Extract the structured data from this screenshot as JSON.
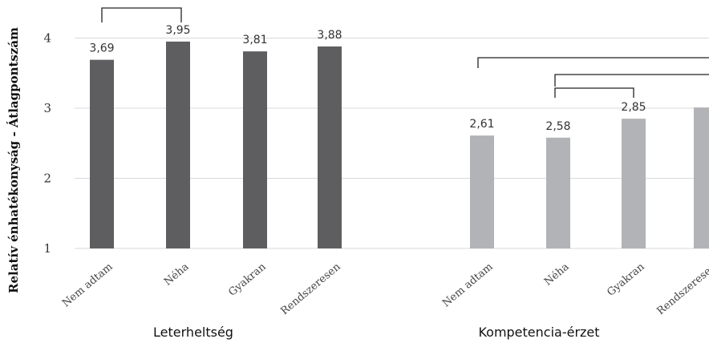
{
  "chart_data": {
    "type": "bar",
    "ylabel": "Relatív énhatékonyság - Átlagpontszám",
    "ylim": [
      1,
      4.3
    ],
    "yticks": [
      1,
      2,
      3,
      4
    ],
    "grid": true,
    "groups": [
      {
        "name": "Leterheltség",
        "color": "#5e5e60",
        "categories": [
          "Nem adtam",
          "Néha",
          "Gyakran",
          "Rendszeresen"
        ],
        "values": [
          3.69,
          3.95,
          3.81,
          3.88
        ],
        "value_labels": [
          "3,69",
          "3,95",
          "3,81",
          "3,88"
        ]
      },
      {
        "name": "Kompetencia-érzet",
        "color": "#b2b3b6",
        "categories": [
          "Nem adtam",
          "Néha",
          "Gyakran",
          "Rendszeresen"
        ],
        "values": [
          2.61,
          2.58,
          2.85,
          3.01
        ],
        "value_labels": [
          "2,61",
          "2,58",
          "2,85",
          ""
        ]
      }
    ]
  }
}
